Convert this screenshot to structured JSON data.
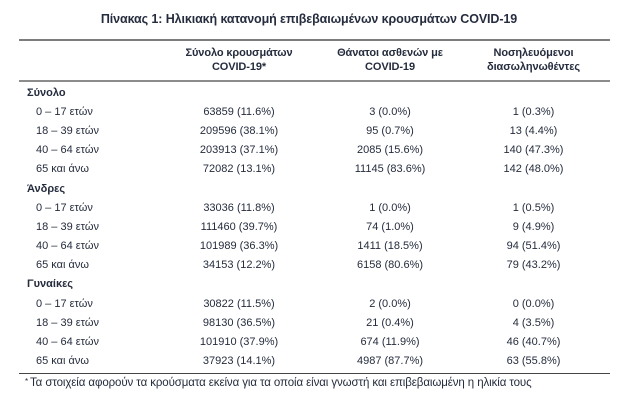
{
  "title": "Πίνακας 1: Ηλικιακή κατανομή επιβεβαιωμένων κρουσμάτων COVID-19",
  "table": {
    "headers": [
      {
        "line1": "Σύνολο κρουσμάτων",
        "line2": "COVID-19*"
      },
      {
        "line1": "Θάνατοι ασθενών με",
        "line2": "COVID-19"
      },
      {
        "line1": "Νοσηλευόμενοι",
        "line2": "διασωληνωθέντες"
      }
    ],
    "sections": [
      {
        "label": "Σύνολο",
        "rows": [
          {
            "age": "0 – 17 ετών",
            "cases": "63859 (11.6%)",
            "deaths": "3 (0.0%)",
            "intubated": "1 (0.3%)"
          },
          {
            "age": "18 – 39 ετών",
            "cases": "209596 (38.1%)",
            "deaths": "95 (0.7%)",
            "intubated": "13 (4.4%)"
          },
          {
            "age": "40 – 64 ετών",
            "cases": "203913 (37.1%)",
            "deaths": "2085 (15.6%)",
            "intubated": "140 (47.3%)"
          },
          {
            "age": "65 και άνω",
            "cases": "72082 (13.1%)",
            "deaths": "11145 (83.6%)",
            "intubated": "142 (48.0%)"
          }
        ]
      },
      {
        "label": "Άνδρες",
        "rows": [
          {
            "age": "0 – 17 ετών",
            "cases": "33036 (11.8%)",
            "deaths": "1 (0.0%)",
            "intubated": "1 (0.5%)"
          },
          {
            "age": "18 – 39 ετών",
            "cases": "111460 (39.7%)",
            "deaths": "74 (1.0%)",
            "intubated": "9 (4.9%)"
          },
          {
            "age": "40 – 64 ετών",
            "cases": "101989 (36.3%)",
            "deaths": "1411 (18.5%)",
            "intubated": "94 (51.4%)"
          },
          {
            "age": "65 και άνω",
            "cases": "34153 (12.2%)",
            "deaths": "6158 (80.6%)",
            "intubated": "79 (43.2%)"
          }
        ]
      },
      {
        "label": "Γυναίκες",
        "rows": [
          {
            "age": "0 – 17 ετών",
            "cases": "30822 (11.5%)",
            "deaths": "2 (0.0%)",
            "intubated": "0 (0.0%)"
          },
          {
            "age": "18 – 39 ετών",
            "cases": "98130 (36.5%)",
            "deaths": "21 (0.4%)",
            "intubated": "4 (3.5%)"
          },
          {
            "age": "40 – 64 ετών",
            "cases": "101910 (37.9%)",
            "deaths": "674 (11.9%)",
            "intubated": "46 (40.7%)"
          },
          {
            "age": "65 και άνω",
            "cases": "37923 (14.1%)",
            "deaths": "4987 (87.7%)",
            "intubated": "63 (55.8%)"
          }
        ]
      }
    ],
    "footnote_marker": "*",
    "footnote_text": "Τα στοιχεία αφορούν τα κρούσματα εκείνα για τα οποία είναι γνωστή και επιβεβαιωμένη η ηλικία τους"
  },
  "chart_data": {
    "type": "table",
    "title": "Πίνακας 1: Ηλικιακή κατανομή επιβεβαιωμένων κρουσμάτων COVID-19",
    "columns": [
      "Σύνολο κρουσμάτων COVID-19*",
      "Θάνατοι ασθενών με COVID-19",
      "Νοσηλευόμενοι διασωληνωθέντες"
    ],
    "groups": [
      "Σύνολο",
      "Άνδρες",
      "Γυναίκες"
    ],
    "age_bands": [
      "0 – 17 ετών",
      "18 – 39 ετών",
      "40 – 64 ετών",
      "65 και άνω"
    ],
    "values": {
      "Σύνολο": {
        "cases": [
          63859,
          209596,
          203913,
          72082
        ],
        "cases_pct": [
          11.6,
          38.1,
          37.1,
          13.1
        ],
        "deaths": [
          3,
          95,
          2085,
          11145
        ],
        "deaths_pct": [
          0.0,
          0.7,
          15.6,
          83.6
        ],
        "intubated": [
          1,
          13,
          140,
          142
        ],
        "intubated_pct": [
          0.3,
          4.4,
          47.3,
          48.0
        ]
      },
      "Άνδρες": {
        "cases": [
          33036,
          111460,
          101989,
          34153
        ],
        "cases_pct": [
          11.8,
          39.7,
          36.3,
          12.2
        ],
        "deaths": [
          1,
          74,
          1411,
          6158
        ],
        "deaths_pct": [
          0.0,
          1.0,
          18.5,
          80.6
        ],
        "intubated": [
          1,
          9,
          94,
          79
        ],
        "intubated_pct": [
          0.5,
          4.9,
          51.4,
          43.2
        ]
      },
      "Γυναίκες": {
        "cases": [
          30822,
          98130,
          101910,
          37923
        ],
        "cases_pct": [
          11.5,
          36.5,
          37.9,
          14.1
        ],
        "deaths": [
          2,
          21,
          674,
          4987
        ],
        "deaths_pct": [
          0.0,
          0.4,
          11.9,
          87.7
        ],
        "intubated": [
          0,
          4,
          46,
          63
        ],
        "intubated_pct": [
          0.0,
          3.5,
          40.7,
          55.8
        ]
      }
    }
  },
  "colors": {
    "text": "#252c3d",
    "border_top": "#7d7d7d",
    "border_header": "#8c8c8c",
    "border_bottom": "#454545",
    "background": "#ffffff"
  }
}
